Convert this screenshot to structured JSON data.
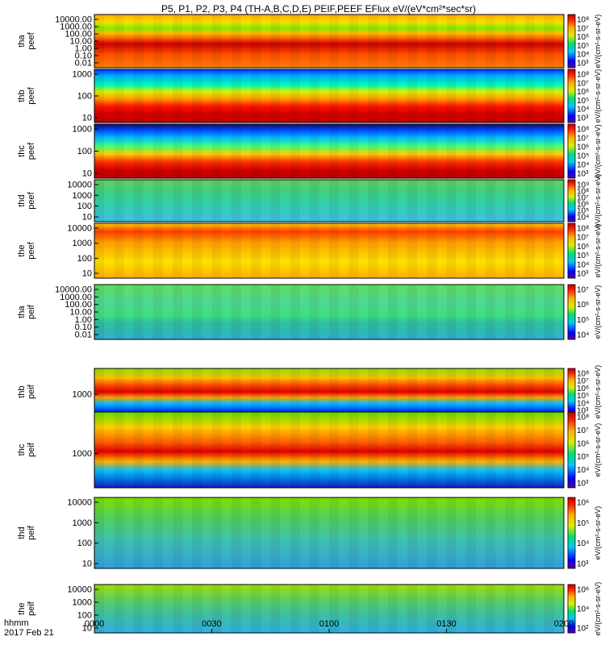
{
  "title": "P5, P1, P2, P3, P4 (TH-A,B,C,D,E) PEIF,PEEF EFlux eV/(eV*cm²*sec*sr)",
  "footer": {
    "time_label": "hhmm",
    "date_label": "2017 Feb 21"
  },
  "chart_data": {
    "type": "heatmap",
    "title": "P5, P1, P2, P3, P4 (TH-A,B,C,D,E) PEIF,PEEF EFlux eV/(eV*cm²*sec*sr)",
    "xlabel": "hhmm",
    "x_ticks": [
      "0000",
      "0030",
      "0100",
      "0130",
      "0200"
    ],
    "x_range_minutes": [
      0,
      120
    ],
    "colorbar_label": "[eV/(cm²-s-sr-eV)]",
    "panels": [
      {
        "probe": "tha",
        "product": "peef",
        "ylabel": [
          "tha",
          "peef"
        ],
        "yticks": [
          "10000.00",
          "1000.00",
          "100.00",
          "10.00",
          "1.00",
          "0.10",
          "0.01"
        ],
        "cbar_ticks": [
          "10⁸",
          "10⁷",
          "10⁶",
          "10⁵",
          "10⁴",
          "10³"
        ],
        "cbar_label": "eV/(cm²-s-sr-eV)"
      },
      {
        "probe": "thb",
        "product": "peef",
        "ylabel": [
          "thb",
          "peef"
        ],
        "yticks": [
          "1000",
          "100",
          "10"
        ],
        "cbar_ticks": [
          "10⁸",
          "10⁷",
          "10⁶",
          "10⁵",
          "10⁴",
          "10³"
        ],
        "cbar_label": "eV/(cm²-s-sr-eV)"
      },
      {
        "probe": "thc",
        "product": "peef",
        "ylabel": [
          "thc",
          "peef"
        ],
        "yticks": [
          "1000",
          "100",
          "10"
        ],
        "cbar_ticks": [
          "10⁸",
          "10⁷",
          "10⁶",
          "10⁵",
          "10⁴",
          "10³"
        ],
        "cbar_label": "eV/(cm²-s-sr-eV)"
      },
      {
        "probe": "thd",
        "product": "peef",
        "ylabel": [
          "thd",
          "peef"
        ],
        "yticks": [
          "10000",
          "1000",
          "100",
          "10"
        ],
        "cbar_ticks": [
          "10⁹",
          "10⁸",
          "10⁷",
          "10⁶",
          "10⁵",
          "10⁴"
        ],
        "cbar_label": "eV/(cm²-s-sr-eV)"
      },
      {
        "probe": "the",
        "product": "peef",
        "ylabel": [
          "the",
          "peef"
        ],
        "yticks": [
          "10000",
          "1000",
          "100",
          "10"
        ],
        "cbar_ticks": [
          "10⁸",
          "10⁷",
          "10⁶",
          "10⁵",
          "10⁴",
          "10³"
        ],
        "cbar_label": "eV/(cm²-s-sr-eV)"
      },
      {
        "probe": "tha",
        "product": "peif",
        "ylabel": [
          "tha",
          "peif"
        ],
        "yticks": [
          "10000.00",
          "1000.00",
          "100.00",
          "10.00",
          "1.00",
          "0.10",
          "0.01"
        ],
        "cbar_ticks": [
          "10⁷",
          "10⁶",
          "10⁵",
          "10⁴"
        ],
        "cbar_label": "eV/(cm²-s-sr-eV)"
      },
      {
        "probe": "thb",
        "product": "peif",
        "ylabel": [
          "thb",
          "peif"
        ],
        "yticks": [
          "1000"
        ],
        "cbar_ticks": [
          "10⁸",
          "10⁷",
          "10⁶",
          "10⁵",
          "10⁴",
          "10³"
        ],
        "cbar_label": "eV/(cm²-s-sr-eV)"
      },
      {
        "probe": "thc",
        "product": "peif",
        "ylabel": [
          "thc",
          "peif"
        ],
        "yticks": [
          "1000"
        ],
        "cbar_ticks": [
          "10⁸",
          "10⁷",
          "10⁶",
          "10⁵",
          "10⁴",
          "10³"
        ],
        "cbar_label": "eV/(cm²-s-sr-eV)"
      },
      {
        "probe": "thd",
        "product": "peif",
        "ylabel": [
          "thd",
          "peif"
        ],
        "yticks": [
          "10000",
          "1000",
          "100",
          "10"
        ],
        "cbar_ticks": [
          "10⁶",
          "10⁵",
          "10⁴",
          "10³"
        ],
        "cbar_label": "eV/(cm²-s-sr-eV)"
      },
      {
        "probe": "the",
        "product": "peif",
        "ylabel": [
          "the",
          "peif"
        ],
        "yticks": [
          "10000",
          "1000",
          "100",
          "10"
        ],
        "cbar_ticks": [
          "10⁶",
          "10⁴",
          "10²"
        ],
        "cbar_label": "eV/(cm²-s-sr-eV)"
      }
    ]
  }
}
